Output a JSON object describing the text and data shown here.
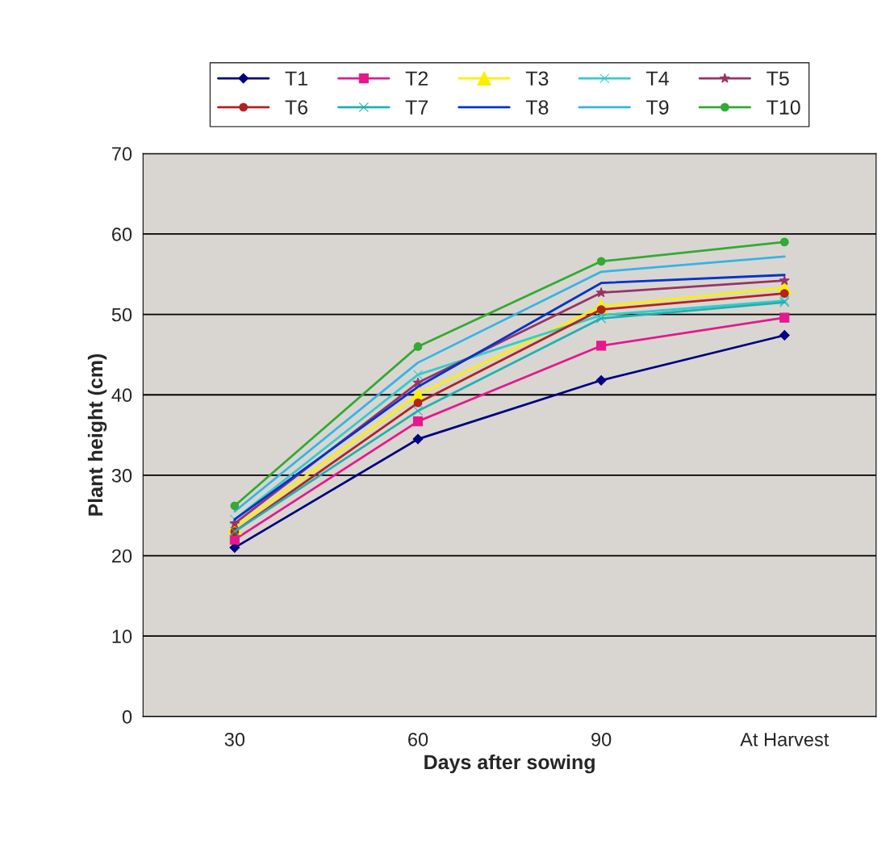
{
  "chart_data": {
    "type": "line",
    "xlabel": "Days after sowing",
    "ylabel": "Plant height (cm)",
    "categories": [
      "30",
      "60",
      "90",
      "At Harvest"
    ],
    "ylim": [
      0,
      70
    ],
    "yticks": [
      0,
      10,
      20,
      30,
      40,
      50,
      60,
      70
    ],
    "grid": "y",
    "legend": "top",
    "series": [
      {
        "name": "T1",
        "color": "#000080",
        "marker": "diamond",
        "values": [
          21.0,
          34.5,
          41.8,
          47.4
        ]
      },
      {
        "name": "T2",
        "color": "#e5188c",
        "marker": "square",
        "values": [
          22.0,
          36.7,
          46.1,
          49.6
        ]
      },
      {
        "name": "T3",
        "color": "#ffee00",
        "marker": "triangle",
        "values": [
          23.5,
          40.0,
          51.0,
          53.3
        ]
      },
      {
        "name": "T4",
        "color": "#33cccc",
        "marker": "cross",
        "values": [
          24.5,
          42.5,
          49.9,
          51.7
        ]
      },
      {
        "name": "T5",
        "color": "#993366",
        "marker": "star",
        "values": [
          24.0,
          41.5,
          52.7,
          54.2
        ]
      },
      {
        "name": "T6",
        "color": "#b22222",
        "marker": "circle",
        "values": [
          23.0,
          39.0,
          50.6,
          52.6
        ]
      },
      {
        "name": "T7",
        "color": "#20b0b0",
        "marker": "cross",
        "values": [
          23.0,
          38.0,
          49.5,
          51.5
        ]
      },
      {
        "name": "T8",
        "color": "#0033cc",
        "marker": "none",
        "values": [
          24.5,
          41.0,
          53.9,
          54.9
        ]
      },
      {
        "name": "T9",
        "color": "#33b5e5",
        "marker": "none",
        "values": [
          25.5,
          44.0,
          55.3,
          57.2
        ]
      },
      {
        "name": "T10",
        "color": "#33aa33",
        "marker": "circle",
        "values": [
          26.2,
          46.0,
          56.6,
          59.0
        ]
      }
    ]
  }
}
